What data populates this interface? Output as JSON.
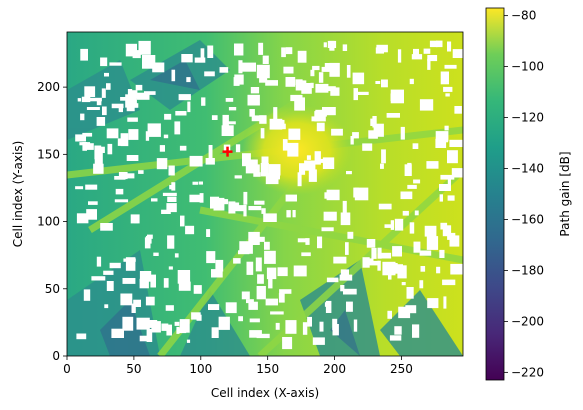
{
  "chart_data": {
    "type": "heatmap",
    "title": "",
    "xlabel": "Cell index (X-axis)",
    "ylabel": "Cell index (Y-axis)",
    "xlim": [
      0,
      296
    ],
    "ylim": [
      0,
      241
    ],
    "xticks": [
      0,
      50,
      100,
      150,
      200,
      250
    ],
    "yticks": [
      0,
      50,
      100,
      150,
      200
    ],
    "grid": false,
    "colormap": "viridis",
    "colorbar": {
      "label": "Path gain [dB]",
      "range": [
        -223,
        -77
      ],
      "ticks": [
        -220,
        -200,
        -180,
        -160,
        -140,
        -120,
        -100,
        -80
      ]
    },
    "transmitter": {
      "x": 120,
      "y": 152,
      "marker": "+",
      "color": "#ff0000"
    },
    "heatmap": {
      "description_levels": {
        "left_region": -135,
        "center_region": -115,
        "right_region": -100,
        "hotspot_near_x175_y155": -85
      }
    }
  },
  "colors": {
    "transmitter": "#ff0000",
    "buildings": "#ffffff"
  }
}
